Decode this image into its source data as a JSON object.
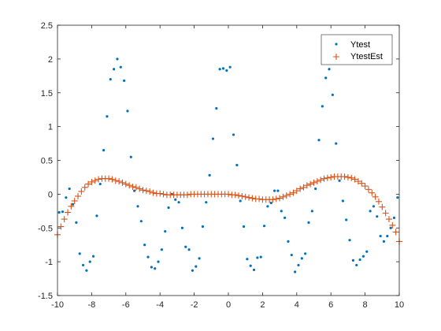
{
  "chart_data": {
    "type": "scatter",
    "xlim": [
      -10,
      10
    ],
    "ylim": [
      -1.5,
      2.5
    ],
    "xticks": [
      "-10",
      "-8",
      "-6",
      "-4",
      "-2",
      "0",
      "2",
      "4",
      "6",
      "8",
      "10"
    ],
    "yticks": [
      "-1.5",
      "-1",
      "-0.5",
      "0",
      "0.5",
      "1",
      "1.5",
      "2",
      "2.5"
    ],
    "grid": false,
    "legend_position": "top-right",
    "series": [
      {
        "name": "Ytest",
        "marker": "dot",
        "color": "#0072BD",
        "x": [
          -9.9,
          -9.7,
          -9.5,
          -9.3,
          -9.1,
          -8.9,
          -8.7,
          -8.5,
          -8.3,
          -8.1,
          -7.9,
          -7.7,
          -7.5,
          -7.3,
          -7.1,
          -6.9,
          -6.7,
          -6.5,
          -6.3,
          -6.1,
          -5.9,
          -5.7,
          -5.5,
          -5.3,
          -5.1,
          -4.9,
          -4.7,
          -4.5,
          -4.3,
          -4.1,
          -3.9,
          -3.7,
          -3.5,
          -3.3,
          -3.1,
          -2.9,
          -2.7,
          -2.5,
          -2.3,
          -2.1,
          -1.9,
          -1.7,
          -1.5,
          -1.3,
          -1.1,
          -0.9,
          -0.7,
          -0.5,
          -0.3,
          -0.1,
          0.1,
          0.3,
          0.5,
          0.7,
          0.9,
          1.1,
          1.3,
          1.5,
          1.7,
          1.9,
          2.1,
          2.3,
          2.5,
          2.7,
          2.9,
          3.1,
          3.3,
          3.5,
          3.7,
          3.9,
          4.1,
          4.3,
          4.5,
          4.7,
          4.9,
          5.1,
          5.3,
          5.5,
          5.7,
          5.9,
          6.1,
          6.3,
          6.5,
          6.7,
          6.9,
          7.1,
          7.3,
          7.5,
          7.7,
          7.9,
          8.1,
          8.3,
          8.5,
          8.7,
          8.9,
          9.1,
          9.3,
          9.5,
          9.7,
          9.9
        ],
        "y": [
          -0.27,
          -0.26,
          -0.05,
          0.08,
          -0.15,
          -0.42,
          -0.88,
          -1.05,
          -1.13,
          -1.0,
          -0.92,
          -0.32,
          0.15,
          0.65,
          1.15,
          1.7,
          1.85,
          2.0,
          1.88,
          1.68,
          1.23,
          0.55,
          0.05,
          -0.18,
          -0.4,
          -0.75,
          -0.93,
          -1.08,
          -1.1,
          -1.0,
          -0.82,
          -0.55,
          -0.2,
          0.0,
          -0.08,
          -0.12,
          -0.5,
          -0.78,
          -0.82,
          -1.13,
          -1.07,
          -0.95,
          -0.48,
          -0.12,
          0.28,
          0.82,
          1.27,
          1.85,
          1.86,
          1.83,
          1.88,
          0.88,
          0.43,
          -0.1,
          -0.48,
          -0.96,
          -1.06,
          -1.12,
          -0.94,
          -0.93,
          -0.47,
          -0.18,
          -0.13,
          0.05,
          0.05,
          -0.25,
          -0.35,
          -0.7,
          -0.9,
          -1.15,
          -1.05,
          -0.95,
          -0.88,
          -0.42,
          -0.25,
          0.08,
          0.8,
          1.3,
          1.72,
          1.85,
          1.47,
          0.75,
          0.2,
          -0.1,
          -0.38,
          -0.68,
          -0.98,
          -1.05,
          -0.97,
          -0.92,
          -0.85,
          -0.25,
          -0.18,
          -0.33,
          -0.62,
          -0.7,
          -0.62,
          -0.5,
          -0.35,
          -0.05
        ]
      },
      {
        "name": "YtestEst",
        "marker": "plus",
        "color": "#D95319",
        "x": [
          -10.0,
          -9.8,
          -9.6,
          -9.4,
          -9.2,
          -9.0,
          -8.8,
          -8.6,
          -8.4,
          -8.2,
          -8.0,
          -7.8,
          -7.6,
          -7.4,
          -7.2,
          -7.0,
          -6.8,
          -6.6,
          -6.4,
          -6.2,
          -6.0,
          -5.8,
          -5.6,
          -5.4,
          -5.2,
          -5.0,
          -4.8,
          -4.6,
          -4.4,
          -4.2,
          -4.0,
          -3.8,
          -3.6,
          -3.4,
          -3.2,
          -3.0,
          -2.8,
          -2.6,
          -2.4,
          -2.2,
          -2.0,
          -1.8,
          -1.6,
          -1.4,
          -1.2,
          -1.0,
          -0.8,
          -0.6,
          -0.4,
          -0.2,
          0.0,
          0.2,
          0.4,
          0.6,
          0.8,
          1.0,
          1.2,
          1.4,
          1.6,
          1.8,
          2.0,
          2.2,
          2.4,
          2.6,
          2.8,
          3.0,
          3.2,
          3.4,
          3.6,
          3.8,
          4.0,
          4.2,
          4.4,
          4.6,
          4.8,
          5.0,
          5.2,
          5.4,
          5.6,
          5.8,
          6.0,
          6.2,
          6.4,
          6.6,
          6.8,
          7.0,
          7.2,
          7.4,
          7.6,
          7.8,
          8.0,
          8.2,
          8.4,
          8.6,
          8.8,
          9.0,
          9.2,
          9.4,
          9.6,
          9.8,
          10.0
        ],
        "y": [
          -0.6,
          -0.48,
          -0.37,
          -0.27,
          -0.18,
          -0.1,
          -0.03,
          0.04,
          0.1,
          0.15,
          0.18,
          0.2,
          0.22,
          0.23,
          0.23,
          0.23,
          0.22,
          0.2,
          0.19,
          0.17,
          0.15,
          0.13,
          0.11,
          0.1,
          0.08,
          0.06,
          0.05,
          0.04,
          0.02,
          0.01,
          0.01,
          0.0,
          -0.01,
          -0.01,
          -0.01,
          -0.01,
          -0.01,
          -0.01,
          -0.01,
          0.0,
          0.0,
          0.0,
          0.0,
          0.0,
          0.0,
          0.0,
          0.0,
          0.0,
          0.0,
          0.0,
          0.0,
          -0.01,
          -0.01,
          -0.02,
          -0.03,
          -0.04,
          -0.05,
          -0.06,
          -0.07,
          -0.07,
          -0.08,
          -0.08,
          -0.08,
          -0.08,
          -0.07,
          -0.06,
          -0.04,
          -0.02,
          0.0,
          0.02,
          0.05,
          0.08,
          0.1,
          0.13,
          0.15,
          0.17,
          0.19,
          0.21,
          0.23,
          0.24,
          0.25,
          0.26,
          0.26,
          0.26,
          0.26,
          0.25,
          0.24,
          0.22,
          0.19,
          0.16,
          0.12,
          0.07,
          0.02,
          -0.04,
          -0.11,
          -0.19,
          -0.28,
          -0.37,
          -0.46,
          -0.56,
          -0.7
        ]
      }
    ]
  }
}
